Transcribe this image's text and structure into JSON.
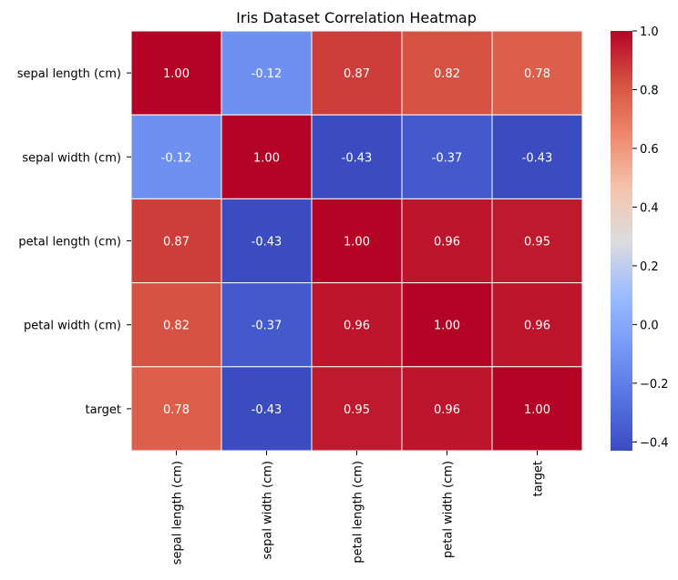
{
  "chart_data": {
    "type": "heatmap",
    "title": "Iris Dataset Correlation Heatmap",
    "row_labels": [
      "sepal length (cm)",
      "sepal width (cm)",
      "petal length (cm)",
      "petal width (cm)",
      "target"
    ],
    "col_labels": [
      "sepal length (cm)",
      "sepal width (cm)",
      "petal length (cm)",
      "petal width (cm)",
      "target"
    ],
    "values": [
      [
        1.0,
        -0.12,
        0.87,
        0.82,
        0.78
      ],
      [
        -0.12,
        1.0,
        -0.43,
        -0.37,
        -0.43
      ],
      [
        0.87,
        -0.43,
        1.0,
        0.96,
        0.95
      ],
      [
        0.82,
        -0.37,
        0.96,
        1.0,
        0.96
      ],
      [
        0.78,
        -0.43,
        0.95,
        0.96,
        1.0
      ]
    ],
    "annotations": [
      [
        "1.00",
        "-0.12",
        "0.87",
        "0.82",
        "0.78"
      ],
      [
        "-0.12",
        "1.00",
        "-0.43",
        "-0.37",
        "-0.43"
      ],
      [
        "0.87",
        "-0.43",
        "1.00",
        "0.96",
        "0.95"
      ],
      [
        "0.82",
        "-0.37",
        "0.96",
        "1.00",
        "0.96"
      ],
      [
        "0.78",
        "-0.43",
        "0.95",
        "0.96",
        "1.00"
      ]
    ],
    "colormap": "coolwarm",
    "vmin": -0.43,
    "vmax": 1.0,
    "colorbar_ticks": [
      1.0,
      0.8,
      0.6,
      0.4,
      0.2,
      0.0,
      -0.2,
      -0.4
    ],
    "colorbar_tick_labels": [
      "1.0",
      "0.8",
      "0.6",
      "0.4",
      "0.2",
      "0.0",
      "−0.2",
      "−0.4"
    ],
    "colors": {
      "low": "#3b4cc0",
      "mid": "#dddddd",
      "high": "#b40426",
      "grid": "#ffffff",
      "text": "#ffffff"
    }
  }
}
